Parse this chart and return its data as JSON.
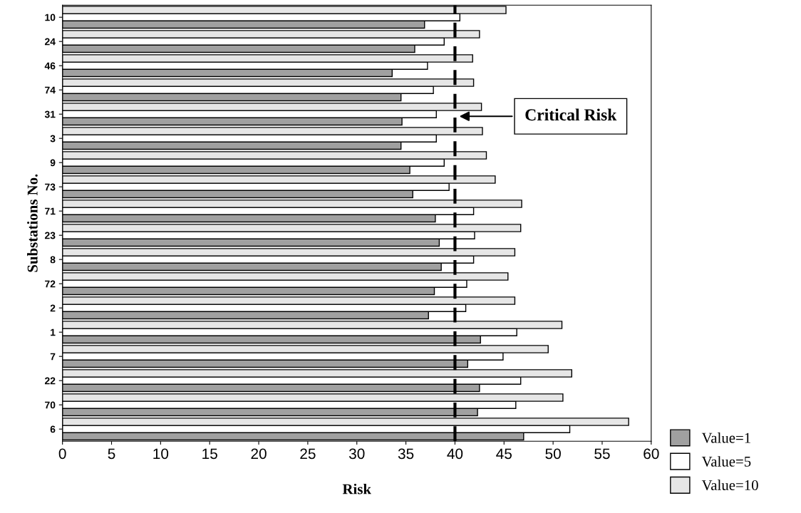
{
  "chart_data": {
    "type": "bar",
    "orientation": "horizontal",
    "xlabel": "Risk",
    "ylabel": "Substations No.",
    "categories": [
      "10",
      "24",
      "46",
      "74",
      "31",
      "3",
      "9",
      "73",
      "71",
      "23",
      "8",
      "72",
      "2",
      "1",
      "7",
      "22",
      "70",
      "6"
    ],
    "series": [
      {
        "name": "Value=1",
        "color": "#a0a0a0",
        "values": [
          36.9,
          35.9,
          33.6,
          34.5,
          34.6,
          34.5,
          35.4,
          35.7,
          38.0,
          38.4,
          38.6,
          37.9,
          37.3,
          42.6,
          41.3,
          42.5,
          42.3,
          47.0
        ]
      },
      {
        "name": "Value=5",
        "color": "#ffffff",
        "values": [
          40.5,
          38.9,
          37.2,
          37.8,
          38.1,
          38.1,
          38.9,
          39.4,
          41.9,
          42.0,
          41.9,
          41.2,
          41.1,
          46.3,
          44.9,
          46.7,
          46.2,
          51.7
        ]
      },
      {
        "name": "Value=10",
        "color": "#e6e6e6",
        "values": [
          45.2,
          42.5,
          41.8,
          41.9,
          42.7,
          42.8,
          43.2,
          44.1,
          46.8,
          46.7,
          46.1,
          45.4,
          46.1,
          50.9,
          49.5,
          51.9,
          51.0,
          57.7
        ]
      }
    ],
    "xlim": [
      0,
      60
    ],
    "xticks": [
      0,
      5,
      10,
      15,
      20,
      25,
      30,
      35,
      40,
      45,
      50,
      55,
      60
    ],
    "ref_lines": [
      {
        "axis": "x",
        "value": 40,
        "color": "#000000",
        "line_style": "dashed"
      }
    ],
    "annotations": [
      "Critical Risk"
    ],
    "legend": "bottom right",
    "grid": false
  }
}
